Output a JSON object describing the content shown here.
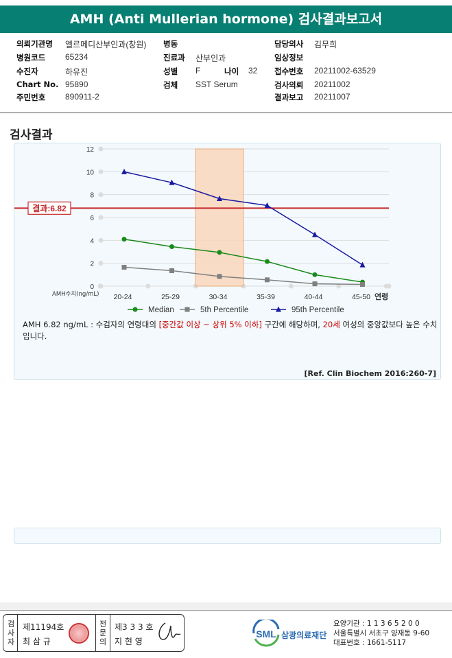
{
  "report": {
    "title": "AMH (Anti Mullerian hormone) 검사결과보고서"
  },
  "info": {
    "institution_label": "의뢰기관명",
    "institution": "엘르메디산부인과(창원)",
    "ward_label": "병동",
    "ward": "",
    "doctor_label": "담당의사",
    "doctor": "김무희",
    "hospital_code_label": "병원코드",
    "hospital_code": "65234",
    "dept_label": "진료과",
    "dept": "산부인과",
    "clinical_label": "임상정보",
    "clinical": "",
    "patient_label": "수진자",
    "patient": "하유진",
    "sex_label": "성별",
    "sex": "F",
    "age_label": "나이",
    "age": "32",
    "receipt_label": "접수번호",
    "receipt": "20211002-63529",
    "chart_label": "Chart No.",
    "chart": "95890",
    "specimen_label": "검체",
    "specimen": "SST Serum",
    "request_label": "검사의뢰",
    "request": "20211002",
    "id_label": "주민번호",
    "id": "890911-2",
    "report_date_label": "결과보고",
    "report_date": "20211007"
  },
  "section_title": "검사결과",
  "chart_data": {
    "type": "line",
    "categories": [
      "20-24",
      "25-29",
      "30-34",
      "35-39",
      "40-44",
      "45-50"
    ],
    "x_axis_extra": "연령",
    "y_axis_label": "AMH수치(ng/mL)",
    "ylim": [
      0,
      12
    ],
    "yticks": [
      "0",
      "2",
      "4",
      "6",
      "8",
      "10",
      "12"
    ],
    "highlight_category": "30-34",
    "result_line": {
      "label": "결과:6.82",
      "value": 6.82,
      "color": "#c62828"
    },
    "series": [
      {
        "name": "Median",
        "color": "#1a8a1a",
        "marker": "circle",
        "values": [
          4.1,
          3.45,
          2.95,
          2.15,
          1.0,
          0.35
        ]
      },
      {
        "name": "5th Percentile",
        "color": "#808080",
        "marker": "square",
        "values": [
          1.65,
          1.35,
          0.85,
          0.55,
          0.2,
          0.15
        ]
      },
      {
        "name": "95th Percentile",
        "color": "#1a1aa0",
        "marker": "triangle",
        "values": [
          10.0,
          9.05,
          7.65,
          7.05,
          4.5,
          1.85
        ]
      }
    ]
  },
  "description": {
    "part1": "AMH  6.82 ng/mL : 수검자의 연령대의 ",
    "hl1": "[중간값 이상 ~ 상위 5% 이하]",
    "part2": "  구간에 해당하며, ",
    "hl2": "20세",
    "part3": " 여성의 중앙값보다 높은 수치입니다."
  },
  "reference": "[Ref. Clin Biochem 2016:260-7]",
  "signature": {
    "inspector_label": "검사자",
    "inspector_no": "제11194호",
    "inspector_name": "최 삼 규",
    "specialist_label": "전문의",
    "specialist_no": "제3 3 3 호",
    "specialist_name": "지 현 영"
  },
  "org": {
    "logo": "SML",
    "name": "삼광의료재단",
    "code": "요양기관 : 1 1 3 6 5 2 0 0",
    "address": "서울특별시 서초구 양재동 9-60",
    "phone": "대표번호 : 1661-5117"
  }
}
